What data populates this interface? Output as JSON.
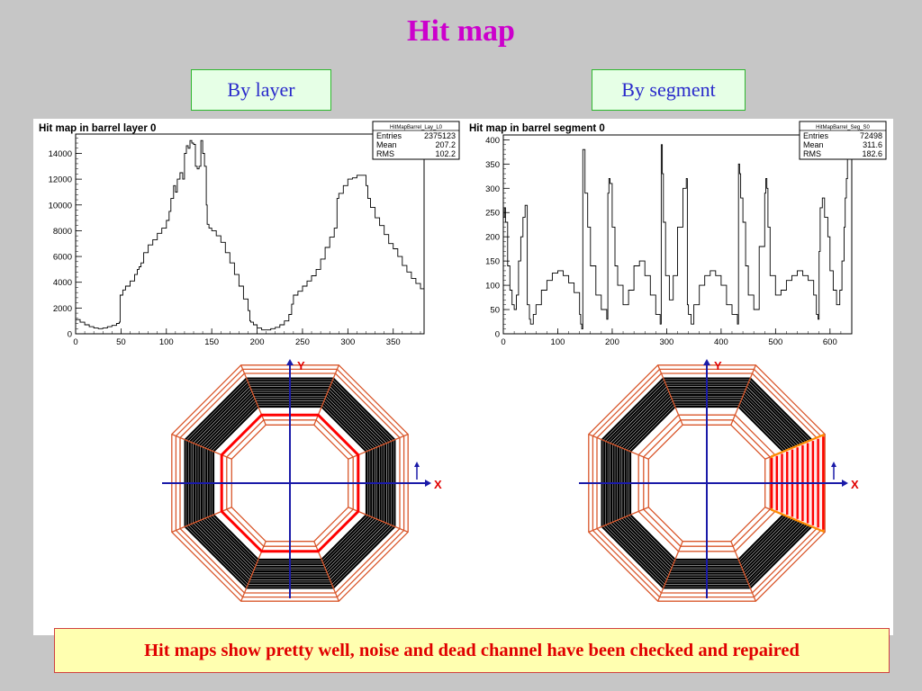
{
  "page": {
    "title": "Hit map",
    "left_label": "By layer",
    "right_label": "By segment",
    "footer": "Hit maps show pretty well, noise and dead channel have been checked and repaired"
  },
  "colors": {
    "title": "#cc00cc",
    "label_text": "#2a2acb",
    "label_bg": "#e6ffe6",
    "footer_text": "#e00000",
    "footer_bg": "#ffffb0",
    "octagon_outline": "#d9572b",
    "strips": "#000000",
    "highlight": "#ff0000",
    "axes": "#1a1aa8"
  },
  "chart_data": [
    {
      "type": "line",
      "title": "Hit map in barrel layer 0",
      "stats": {
        "name": "HitMapBarrel_Lay_L0",
        "rows": [
          {
            "label": "Entries",
            "value": "2375123"
          },
          {
            "label": "Mean",
            "value": "207.2"
          },
          {
            "label": "RMS",
            "value": "102.2"
          }
        ]
      },
      "xlim": [
        0,
        384
      ],
      "ylim": [
        0,
        15500
      ],
      "xticks": [
        0,
        50,
        100,
        150,
        200,
        250,
        300,
        350
      ],
      "yticks": [
        0,
        2000,
        4000,
        6000,
        8000,
        10000,
        12000,
        14000
      ],
      "grid": false,
      "x": [
        0,
        5,
        10,
        15,
        20,
        25,
        30,
        35,
        40,
        45,
        48,
        49,
        52,
        55,
        60,
        65,
        68,
        70,
        72,
        75,
        80,
        85,
        90,
        95,
        100,
        103,
        105,
        108,
        110,
        112,
        115,
        118,
        120,
        122,
        124,
        126,
        128,
        130,
        132,
        134,
        136,
        138,
        140,
        142,
        144,
        145,
        147,
        150,
        155,
        160,
        165,
        170,
        175,
        180,
        185,
        190,
        192,
        193,
        196,
        200,
        205,
        210,
        215,
        220,
        225,
        230,
        235,
        238,
        240,
        245,
        250,
        255,
        260,
        265,
        270,
        275,
        280,
        285,
        288,
        290,
        295,
        300,
        305,
        310,
        315,
        320,
        322,
        325,
        330,
        335,
        340,
        345,
        350,
        355,
        360,
        365,
        370,
        375,
        380,
        384
      ],
      "y": [
        1100,
        900,
        700,
        550,
        450,
        400,
        450,
        550,
        650,
        800,
        900,
        3000,
        3400,
        3700,
        4100,
        4600,
        5000,
        5200,
        5500,
        6300,
        6900,
        7300,
        7800,
        8200,
        8800,
        9500,
        10500,
        11500,
        11000,
        12000,
        12500,
        12000,
        14000,
        14600,
        14400,
        15000,
        14800,
        14700,
        13000,
        12800,
        13000,
        15000,
        14000,
        13000,
        10000,
        8500,
        8200,
        8000,
        7600,
        7100,
        6300,
        5500,
        4600,
        3700,
        2700,
        1800,
        1000,
        900,
        700,
        450,
        300,
        300,
        400,
        500,
        700,
        1000,
        1500,
        2300,
        3000,
        3300,
        3700,
        4100,
        4500,
        5000,
        5800,
        6700,
        7500,
        8200,
        10500,
        10900,
        11500,
        12000,
        12100,
        12300,
        12300,
        11500,
        10500,
        9800,
        9000,
        8400,
        7700,
        7000,
        6600,
        6000,
        5300,
        4800,
        4300,
        3900,
        3500,
        3400
      ]
    },
    {
      "type": "line",
      "title": "Hit map in barrel segment 0",
      "stats": {
        "name": "HitMapBarrel_Seg_S0",
        "rows": [
          {
            "label": "Entries",
            "value": "72498"
          },
          {
            "label": "Mean",
            "value": "311.6"
          },
          {
            "label": "RMS",
            "value": "182.6"
          }
        ]
      },
      "xlim": [
        0,
        640
      ],
      "ylim": [
        0,
        410
      ],
      "xticks": [
        0,
        100,
        200,
        300,
        400,
        500,
        600
      ],
      "yticks": [
        0,
        50,
        100,
        150,
        200,
        250,
        300,
        350,
        400
      ],
      "grid": false,
      "x": [
        0,
        2,
        4,
        8,
        12,
        16,
        20,
        24,
        28,
        32,
        36,
        40,
        44,
        48,
        50,
        55,
        60,
        70,
        80,
        90,
        100,
        110,
        120,
        130,
        140,
        142,
        144,
        146,
        150,
        155,
        160,
        170,
        180,
        190,
        192,
        194,
        196,
        200,
        205,
        210,
        220,
        230,
        240,
        250,
        260,
        270,
        280,
        288,
        290,
        292,
        294,
        298,
        305,
        312,
        320,
        330,
        336,
        338,
        340,
        345,
        350,
        360,
        370,
        380,
        390,
        400,
        410,
        420,
        430,
        432,
        434,
        436,
        440,
        445,
        450,
        460,
        470,
        480,
        482,
        484,
        486,
        490,
        500,
        510,
        520,
        530,
        540,
        550,
        560,
        570,
        575,
        578,
        580,
        582,
        586,
        590,
        596,
        600,
        606,
        612,
        618,
        622,
        626,
        628,
        630,
        632
      ],
      "y": [
        240,
        260,
        230,
        140,
        90,
        60,
        50,
        80,
        150,
        200,
        240,
        265,
        60,
        30,
        20,
        40,
        60,
        90,
        110,
        125,
        130,
        120,
        105,
        85,
        40,
        20,
        10,
        380,
        290,
        220,
        140,
        80,
        50,
        30,
        290,
        320,
        310,
        220,
        140,
        100,
        60,
        90,
        140,
        150,
        120,
        80,
        40,
        20,
        390,
        330,
        230,
        120,
        70,
        120,
        220,
        300,
        320,
        60,
        40,
        20,
        60,
        100,
        120,
        130,
        120,
        100,
        60,
        40,
        20,
        350,
        330,
        280,
        230,
        140,
        80,
        50,
        180,
        290,
        320,
        300,
        220,
        120,
        80,
        90,
        110,
        120,
        130,
        120,
        110,
        80,
        40,
        30,
        170,
        260,
        280,
        240,
        200,
        130,
        90,
        60,
        90,
        150,
        220,
        280,
        320,
        360
      ]
    }
  ],
  "diagrams": [
    {
      "highlight": "layer",
      "axis_x_label": "X",
      "axis_y_label": "Y"
    },
    {
      "highlight": "segment",
      "axis_x_label": "X",
      "axis_y_label": "Y"
    }
  ]
}
